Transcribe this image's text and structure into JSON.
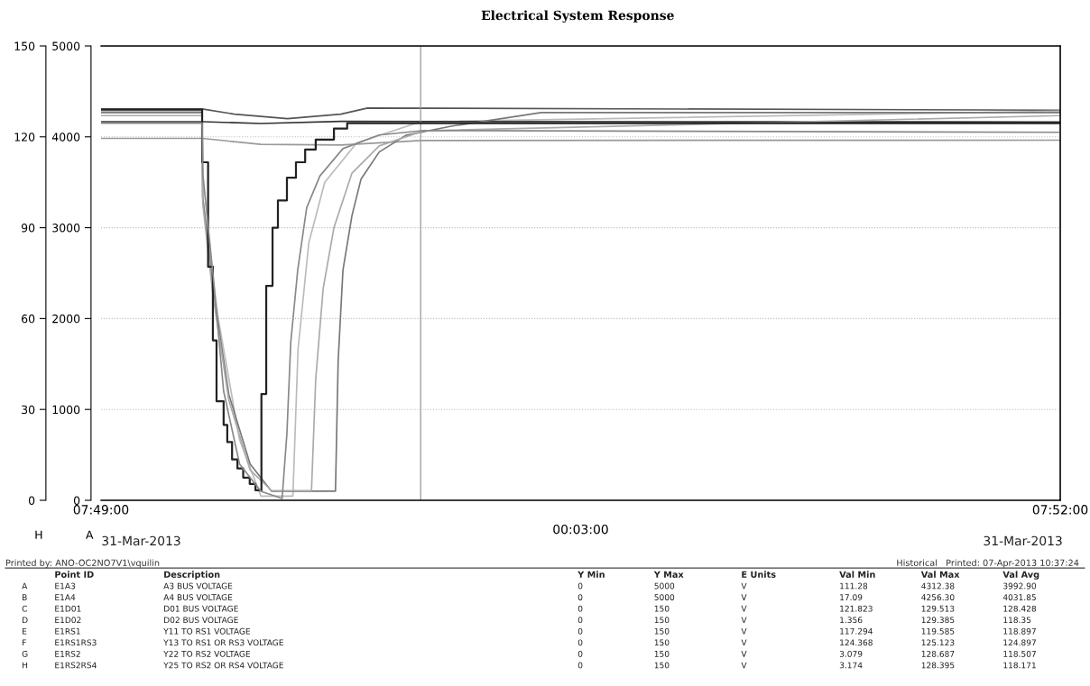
{
  "chart_data": {
    "type": "line",
    "title": "Electrical System Response",
    "xlabel": "00:03:00",
    "ylabel": "H",
    "y2label": "A",
    "xlim": [
      7.81667,
      7.86667
    ],
    "xticks": [
      {
        "value": 7.81667,
        "label": "07:49:00"
      },
      {
        "value": 7.86667,
        "label": "07:52:00"
      }
    ],
    "ylim": [
      0,
      150
    ],
    "yticks": [
      0,
      30,
      60,
      90,
      120,
      150
    ],
    "y2lim": [
      0,
      5000
    ],
    "y2ticks": [
      0,
      1000,
      2000,
      3000,
      4000,
      5000
    ],
    "grid": "y",
    "ref_lines": [
      {
        "axis": "x",
        "value": 7.83333,
        "label": null,
        "color": "#999999"
      }
    ],
    "series": [
      {
        "type": "step",
        "axis": "y2",
        "color": "#222222",
        "x": [
          7.81667,
          7.82194,
          7.82225,
          7.8225,
          7.82269,
          7.82306,
          7.82325,
          7.8235,
          7.82378,
          7.82408,
          7.82442,
          7.82472,
          7.82503,
          7.82528,
          7.82561,
          7.82589,
          7.82636,
          7.82683,
          7.82731,
          7.82786,
          7.82881,
          7.8295,
          7.86667
        ],
        "values": [
          4300,
          3720,
          2570,
          1760,
          1090,
          830,
          640,
          450,
          350,
          250,
          180,
          110,
          1170,
          2360,
          3000,
          3300,
          3550,
          3720,
          3860,
          3970,
          4090,
          4150,
          4150
        ]
      },
      {
        "axis": "y2",
        "color": "#888888",
        "x": [
          7.81667,
          7.82194,
          7.82197,
          7.8225,
          7.82306,
          7.82389,
          7.825,
          7.82611,
          7.82636,
          7.82656,
          7.82692,
          7.82739,
          7.82808,
          7.82928,
          7.83117,
          7.8335,
          7.86667
        ],
        "values": [
          4150,
          4150,
          3600,
          2500,
          1200,
          400,
          100,
          20,
          740,
          1740,
          2530,
          3220,
          3570,
          3870,
          4020,
          4070,
          4050
        ]
      },
      {
        "color": "#555555",
        "x": [
          7.81667,
          7.82194,
          7.82361,
          7.82639,
          7.82917,
          7.83056,
          7.86667
        ],
        "values": [
          129.2,
          129.2,
          127.5,
          126,
          127.5,
          129.5,
          128.8
        ]
      },
      {
        "color": "#bbbbbb",
        "x": [
          7.81667,
          7.82194,
          7.82197,
          7.82278,
          7.82389,
          7.825,
          7.82667,
          7.82694,
          7.8275,
          7.82833,
          7.83,
          7.83333,
          7.86667
        ],
        "values": [
          128.5,
          128.5,
          100,
          60,
          20,
          1.4,
          1.4,
          50,
          85,
          105,
          118,
          125,
          128.5
        ]
      },
      {
        "color": "#999999",
        "x": [
          7.81667,
          7.82194,
          7.825,
          7.82917,
          7.83333,
          7.86667
        ],
        "values": [
          119.5,
          119.5,
          117.5,
          117.3,
          118.8,
          118.9
        ]
      },
      {
        "color": "#333333",
        "x": [
          7.81667,
          7.82194,
          7.825,
          7.82917,
          7.86667
        ],
        "values": [
          125,
          125,
          124.4,
          125.1,
          124.9
        ]
      },
      {
        "color": "#777777",
        "x": [
          7.81667,
          7.82194,
          7.82197,
          7.8225,
          7.82333,
          7.82444,
          7.82556,
          7.82889,
          7.82903,
          7.82928,
          7.82975,
          7.83022,
          7.83117,
          7.83256,
          7.83492,
          7.83961,
          7.86667
        ],
        "values": [
          128,
          128,
          100,
          70,
          35,
          12,
          3,
          3,
          46,
          76,
          94,
          106,
          115,
          120.5,
          123.5,
          128,
          128
        ]
      },
      {
        "color": "#aaaaaa",
        "x": [
          7.81667,
          7.82194,
          7.82197,
          7.8225,
          7.82333,
          7.82444,
          7.82556,
          7.82764,
          7.82786,
          7.82825,
          7.82881,
          7.82975,
          7.83117,
          7.8335,
          7.86667
        ],
        "values": [
          127,
          127,
          98,
          68,
          33,
          10,
          3.2,
          3.2,
          40,
          70,
          90,
          108,
          117,
          122,
          127
        ]
      }
    ],
    "annotations": [
      "31-Mar-2013",
      "31-Mar-2013",
      "Printed by: ANO-OC2NO7V1\\vquilin",
      "Historical   Printed: 07-Apr-2013 10:37:24",
      "\tPoint ID\tDescription\tY Min\tY Max\tE Units\tVal Min\tVal Max\tVal Avg",
      "A\tE1A3\tA3 BUS VOLTAGE\t0\t5000\tV\t111.28\t4312.38\t3992.90",
      "B\tE1A4\tA4 BUS VOLTAGE\t0\t5000\tV\t17.09\t4256.30\t4031.85",
      "C\tE1D01\tD01 BUS VOLTAGE\t0\t150\tV\t121.823\t129.513\t128.428",
      "D\tE1D02\tD02 BUS VOLTAGE\t0\t150\tV\t1.356\t129.385\t118.35",
      "E\tE1RS1\tY11 TO RS1 VOLTAGE\t0\t150\tV\t117.294\t119.585\t118.897",
      "F\tE1RS1RS3\tY13 TO RS1 OR RS3 VOLTAGE\t0\t150\tV\t124.368\t125.123\t124.897",
      "G\tE1RS2\tY22 TO RS2 VOLTAGE\t0\t150\tV\t3.079\t128.687\t118.507",
      "H\tE1RS2RS4\tY25 TO RS2 OR RS4 VOLTAGE\t0\t150\tV\t3.174\t128.395\t118.171"
    ]
  }
}
